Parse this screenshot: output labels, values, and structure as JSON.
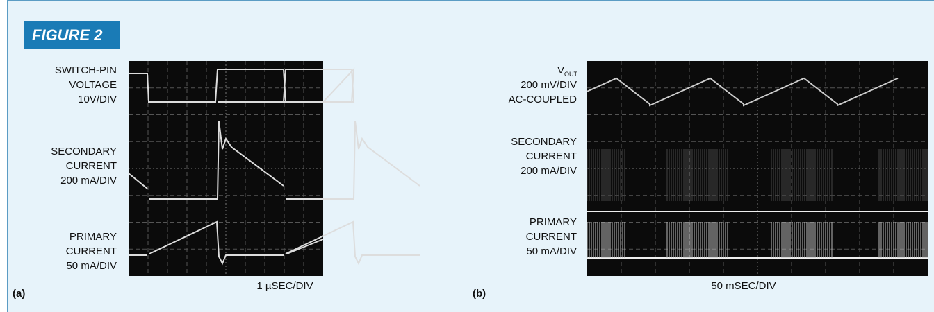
{
  "figure": {
    "title": "FIGURE 2",
    "panels": [
      {
        "tag": "(a)",
        "timebase": "1 µSEC/DIV",
        "labels": [
          {
            "lines": [
              "SWITCH-PIN",
              "VOLTAGE",
              "10V/DIV"
            ]
          },
          {
            "lines": [
              "SECONDARY",
              "CURRENT",
              "200 mA/DIV"
            ]
          },
          {
            "lines": [
              "PRIMARY",
              "CURRENT",
              "50 mA/DIV"
            ]
          }
        ]
      },
      {
        "tag": "(b)",
        "timebase": "50 mSEC/DIV",
        "labels": [
          {
            "lines": [
              "V",
              "200 mV/DIV",
              "AC-COUPLED"
            ],
            "subscript": "OUT"
          },
          {
            "lines": [
              "SECONDARY",
              "CURRENT",
              "200 mA/DIV"
            ]
          },
          {
            "lines": [
              "PRIMARY",
              "CURRENT",
              "50 mA/DIV"
            ]
          }
        ]
      }
    ]
  }
}
